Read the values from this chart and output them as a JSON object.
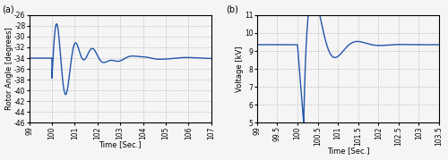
{
  "panel_a": {
    "label": "(a)",
    "xlabel": "Time [Sec.]",
    "ylabel": "Rotor Angle [degrees]",
    "xlim": [
      99.0,
      107.0
    ],
    "ylim": [
      -46,
      -26
    ],
    "xticks": [
      99.0,
      100.0,
      101.0,
      102.0,
      103.0,
      104.0,
      105.0,
      106.0,
      107.0
    ],
    "yticks": [
      -46,
      -44,
      -42,
      -40,
      -38,
      -36,
      -34,
      -32,
      -30,
      -28,
      -26
    ],
    "line_color": "#2255aa",
    "steady_val": -34.0,
    "fault_time": 100.0,
    "settle_val": -34.0
  },
  "panel_b": {
    "label": "(b)",
    "xlabel": "Time [Sec.]",
    "ylabel": "Voltage [kV]",
    "xlim": [
      99.0,
      103.5
    ],
    "ylim": [
      5.0,
      11.0
    ],
    "xticks": [
      99.0,
      99.5,
      100.0,
      100.5,
      101.0,
      101.5,
      102.0,
      102.5,
      103.0,
      103.5
    ],
    "yticks": [
      5.0,
      6.0,
      7.0,
      8.0,
      9.0,
      10.0,
      11.0
    ],
    "line_color": "#2255aa",
    "prefault_val": 9.35,
    "fault_min": 5.1,
    "fault_time": 100.0,
    "fault_clear": 100.15,
    "peak_val": 10.4,
    "settle_val": 9.35
  },
  "grid_color": "#aaaaaa",
  "background_color": "#f5f5f5",
  "line_width": 1.0,
  "label_fontsize": 6,
  "tick_fontsize": 5.5
}
